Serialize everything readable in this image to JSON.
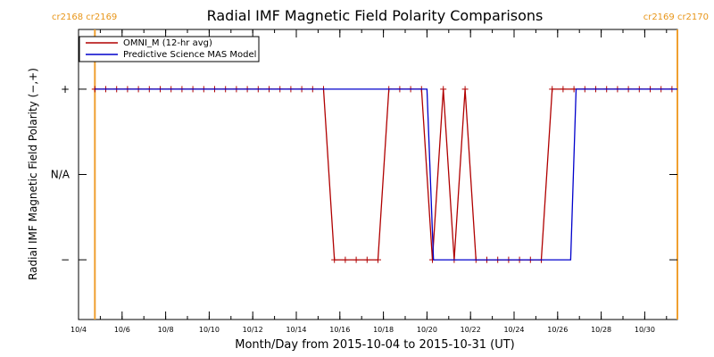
{
  "chart_data": {
    "type": "line",
    "title": "Radial IMF Magnetic Field Polarity Comparisons",
    "xlabel": "Month/Day from 2015-10-04 to 2015-10-31 (UT)",
    "ylabel": "Radial IMF Magnetic Field Polarity (−,+)",
    "x_unit": "day of October 2015",
    "xlim": [
      4.0,
      31.5
    ],
    "ylim": [
      -1.7,
      1.7
    ],
    "y_levels": [
      1,
      0,
      -1
    ],
    "y_tick_labels": [
      "+",
      "N/A",
      "−"
    ],
    "x_ticks": [
      4,
      6,
      8,
      10,
      12,
      14,
      16,
      18,
      20,
      22,
      24,
      26,
      28,
      30
    ],
    "x_tick_labels": [
      "10/4",
      "10/6",
      "10/8",
      "10/10",
      "10/12",
      "10/14",
      "10/16",
      "10/18",
      "10/20",
      "10/22",
      "10/24",
      "10/26",
      "10/28",
      "10/30"
    ],
    "carrington_markers": [
      {
        "x": 4.75,
        "label": "cr2168 cr2169",
        "side": "left"
      },
      {
        "x": 31.5,
        "label": "cr2169 cr2170",
        "side": "right"
      }
    ],
    "legend_position": "top-left",
    "series": [
      {
        "name": "OMNI_M (12-hr avg)",
        "color": "#b00000",
        "markers": true,
        "x": [
          4.75,
          5.25,
          5.75,
          6.25,
          6.75,
          7.25,
          7.75,
          8.25,
          8.75,
          9.25,
          9.75,
          10.25,
          10.75,
          11.25,
          11.75,
          12.25,
          12.75,
          13.25,
          13.75,
          14.25,
          14.75,
          15.25,
          15.75,
          16.25,
          16.75,
          17.25,
          17.75,
          18.25,
          18.75,
          19.25,
          19.75,
          20.25,
          20.75,
          21.25,
          21.75,
          22.25,
          22.75,
          23.25,
          23.75,
          24.25,
          24.75,
          25.25,
          25.75,
          26.25,
          26.75,
          27.25,
          27.75,
          28.25,
          28.75,
          29.25,
          29.75,
          30.25,
          30.75,
          31.25
        ],
        "y": [
          1,
          1,
          1,
          1,
          1,
          1,
          1,
          1,
          1,
          1,
          1,
          1,
          1,
          1,
          1,
          1,
          1,
          1,
          1,
          1,
          1,
          1,
          -1,
          -1,
          -1,
          -1,
          -1,
          1,
          1,
          1,
          1,
          -1,
          1,
          -1,
          1,
          -1,
          -1,
          -1,
          -1,
          -1,
          -1,
          -1,
          1,
          1,
          1,
          1,
          1,
          1,
          1,
          1,
          1,
          1,
          1,
          1
        ]
      },
      {
        "name": "Predictive Science MAS Model",
        "color": "#0000cc",
        "markers": false,
        "x": [
          4.75,
          20.0,
          20.3,
          26.6,
          26.85,
          31.5
        ],
        "y": [
          1,
          1,
          -1,
          -1,
          1,
          1
        ]
      }
    ]
  }
}
